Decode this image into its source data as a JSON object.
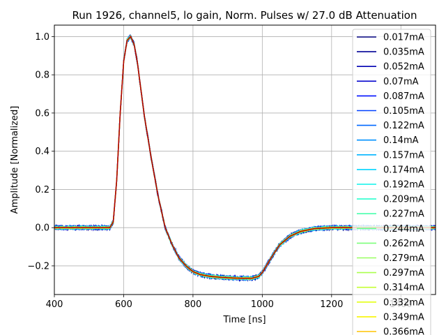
{
  "chart_data": {
    "type": "line",
    "title": "Run 1926, channel5, lo gain, Norm. Pulses w/ 27.0 dB Attenuation",
    "xlabel": "Time [ns]",
    "ylabel": "Amplitude [Normalized]",
    "xlim": [
      400,
      1500
    ],
    "ylim": [
      -0.35,
      1.06
    ],
    "xticks": [
      400,
      600,
      800,
      1000,
      1200,
      1400
    ],
    "xtick_labels": [
      "400",
      "600",
      "800",
      "1000",
      "1200",
      "1400"
    ],
    "yticks": [
      -0.2,
      0.0,
      0.2,
      0.4,
      0.6,
      0.8,
      1.0
    ],
    "ytick_labels": [
      "−0.2",
      "0.0",
      "0.2",
      "0.4",
      "0.6",
      "0.8",
      "1.0"
    ],
    "grid": true,
    "legend_position": "upper-right",
    "pulse_shape": {
      "x": [
        400,
        500,
        560,
        570,
        580,
        590,
        600,
        610,
        620,
        630,
        640,
        650,
        660,
        680,
        700,
        720,
        740,
        760,
        780,
        800,
        820,
        850,
        880,
        910,
        940,
        970,
        990,
        1000,
        1010,
        1030,
        1050,
        1080,
        1110,
        1150,
        1200,
        1250,
        1300,
        1400,
        1500
      ],
      "y": [
        0.0,
        0.0,
        0.0,
        0.03,
        0.25,
        0.6,
        0.87,
        0.98,
        1.0,
        0.96,
        0.86,
        0.72,
        0.58,
        0.36,
        0.16,
        0.0,
        -0.09,
        -0.16,
        -0.2,
        -0.23,
        -0.245,
        -0.255,
        -0.26,
        -0.263,
        -0.265,
        -0.265,
        -0.255,
        -0.235,
        -0.205,
        -0.145,
        -0.09,
        -0.045,
        -0.02,
        -0.005,
        0.0,
        0.0,
        0.0,
        0.0,
        0.0
      ]
    },
    "series": [
      {
        "name": "0.017mA",
        "color": "#00007f"
      },
      {
        "name": "0.035mA",
        "color": "#000096"
      },
      {
        "name": "0.052mA",
        "color": "#0000b2"
      },
      {
        "name": "0.07mA",
        "color": "#0000cd"
      },
      {
        "name": "0.087mA",
        "color": "#0010ff"
      },
      {
        "name": "0.105mA",
        "color": "#0040ff"
      },
      {
        "name": "0.122mA",
        "color": "#0068ff"
      },
      {
        "name": "0.14mA",
        "color": "#0090ff"
      },
      {
        "name": "0.157mA",
        "color": "#00b4ff"
      },
      {
        "name": "0.174mA",
        "color": "#00d4ff"
      },
      {
        "name": "0.192mA",
        "color": "#0cf4eb"
      },
      {
        "name": "0.209mA",
        "color": "#29ffce"
      },
      {
        "name": "0.227mA",
        "color": "#49ffad"
      },
      {
        "name": "0.244mA",
        "color": "#6aff8d"
      },
      {
        "name": "0.262mA",
        "color": "#7dff7a"
      },
      {
        "name": "0.279mA",
        "color": "#97ff60"
      },
      {
        "name": "0.297mA",
        "color": "#aaff4d"
      },
      {
        "name": "0.314mA",
        "color": "#c4ff33"
      },
      {
        "name": "0.332mA",
        "color": "#e4ff13"
      },
      {
        "name": "0.349mA",
        "color": "#f8f500"
      },
      {
        "name": "0.366mA",
        "color": "#ffc400"
      }
    ],
    "top_curve_color": "#b20000"
  }
}
